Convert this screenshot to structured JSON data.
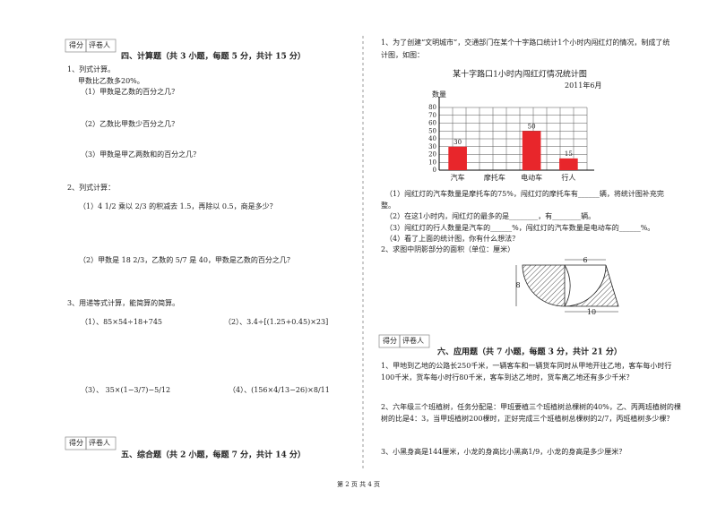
{
  "header": {
    "score": "得分",
    "grader": "评卷人"
  },
  "section4": {
    "title": "四、计算题（共 3 小题，每题 5 分，共计 15 分）",
    "q1": [
      "1、列式计算。",
      "甲数比乙数多20%。",
      "（1）甲数是乙数的百分之几？",
      "（2）乙数比甲数少百分之几？",
      "（3）甲数是甲乙两数和的百分之几？"
    ],
    "q2": [
      "2、列式计算：",
      "（1）4 1/2 乘以 2/3 的积减去 1.5，再除以 0.5，商是多少？",
      "（2）甲数是 18 2/3，乙数的 5/7 是 40，甲数是乙数的百分之几？"
    ],
    "q3": [
      "3、用递等式计算，能简算的简算。",
      "（1）、85×54÷18+745",
      "（2）、3.4÷[(1.25+0.45)×23]",
      "（3）、 35×(1−3/7)−5/12",
      "（4）、(156×4/13−26)×8/11"
    ]
  },
  "section5": {
    "title": "五、综合题（共 2 小题，每题 7 分，共计 14 分）",
    "q1": [
      "1、为了创建“文明城市”，交通部门在某个十字路口统计1个小时内闯红灯的情况，制成了统",
      "计图，如图："
    ],
    "q1_parts": [
      "（1）闯红灯的汽车数量是摩托车的75%，闯红灯的摩托车有______辆，将统计图补充完",
      "整。",
      "（2）在这1小时内，闯红灯的最多的是________，有________辆。",
      "（3）闯红灯的行人数量是汽车的______%，闯红灯的汽车数量是电动车的______%。",
      "（4）看了上面的统计图，你有什么想法？"
    ],
    "q2": "2、求图中阴影部分的面积（单位：厘米）",
    "figure_labels": [
      "6",
      "8",
      "10"
    ]
  },
  "section6": {
    "title": "六、应用题（共 7 小题，每题 3 分，共计 21 分）",
    "q1": [
      "1、甲地到乙地的公路长250千米，一辆客车和一辆货车同时从甲地开往乙地，客车每小时行",
      "100千米，货车每小时行80千米，客车到达乙地时，货车离乙地还有多少千米？"
    ],
    "q2": [
      "2、六年级三个班植树，任务分配是：甲班要植三个班植树总棵树的40%，乙、丙两班植树的棵",
      "树的比是4：3，当甲班植树200棵时，正好完成三个班植树总棵树的2/7，丙班植树多少棵？"
    ],
    "q3": "3、小黑身高是144厘米，小龙的身高比小黑高1/9，小龙的身高是多少厘米？"
  },
  "footer": "第 2 页 共 4 页",
  "chart_data": {
    "type": "bar",
    "title": "某十字路口1小时内闯红灯情况统计图",
    "subtitle": "2011年6月",
    "y_label": "数量",
    "categories": [
      "汽车",
      "摩托车",
      "电动车",
      "行人"
    ],
    "values": [
      30,
      null,
      50,
      15
    ],
    "color": "#e8262b",
    "ylim": [
      0,
      80
    ],
    "yticks": [
      0,
      10,
      20,
      30,
      40,
      50,
      60,
      70,
      80
    ],
    "grid": true
  }
}
